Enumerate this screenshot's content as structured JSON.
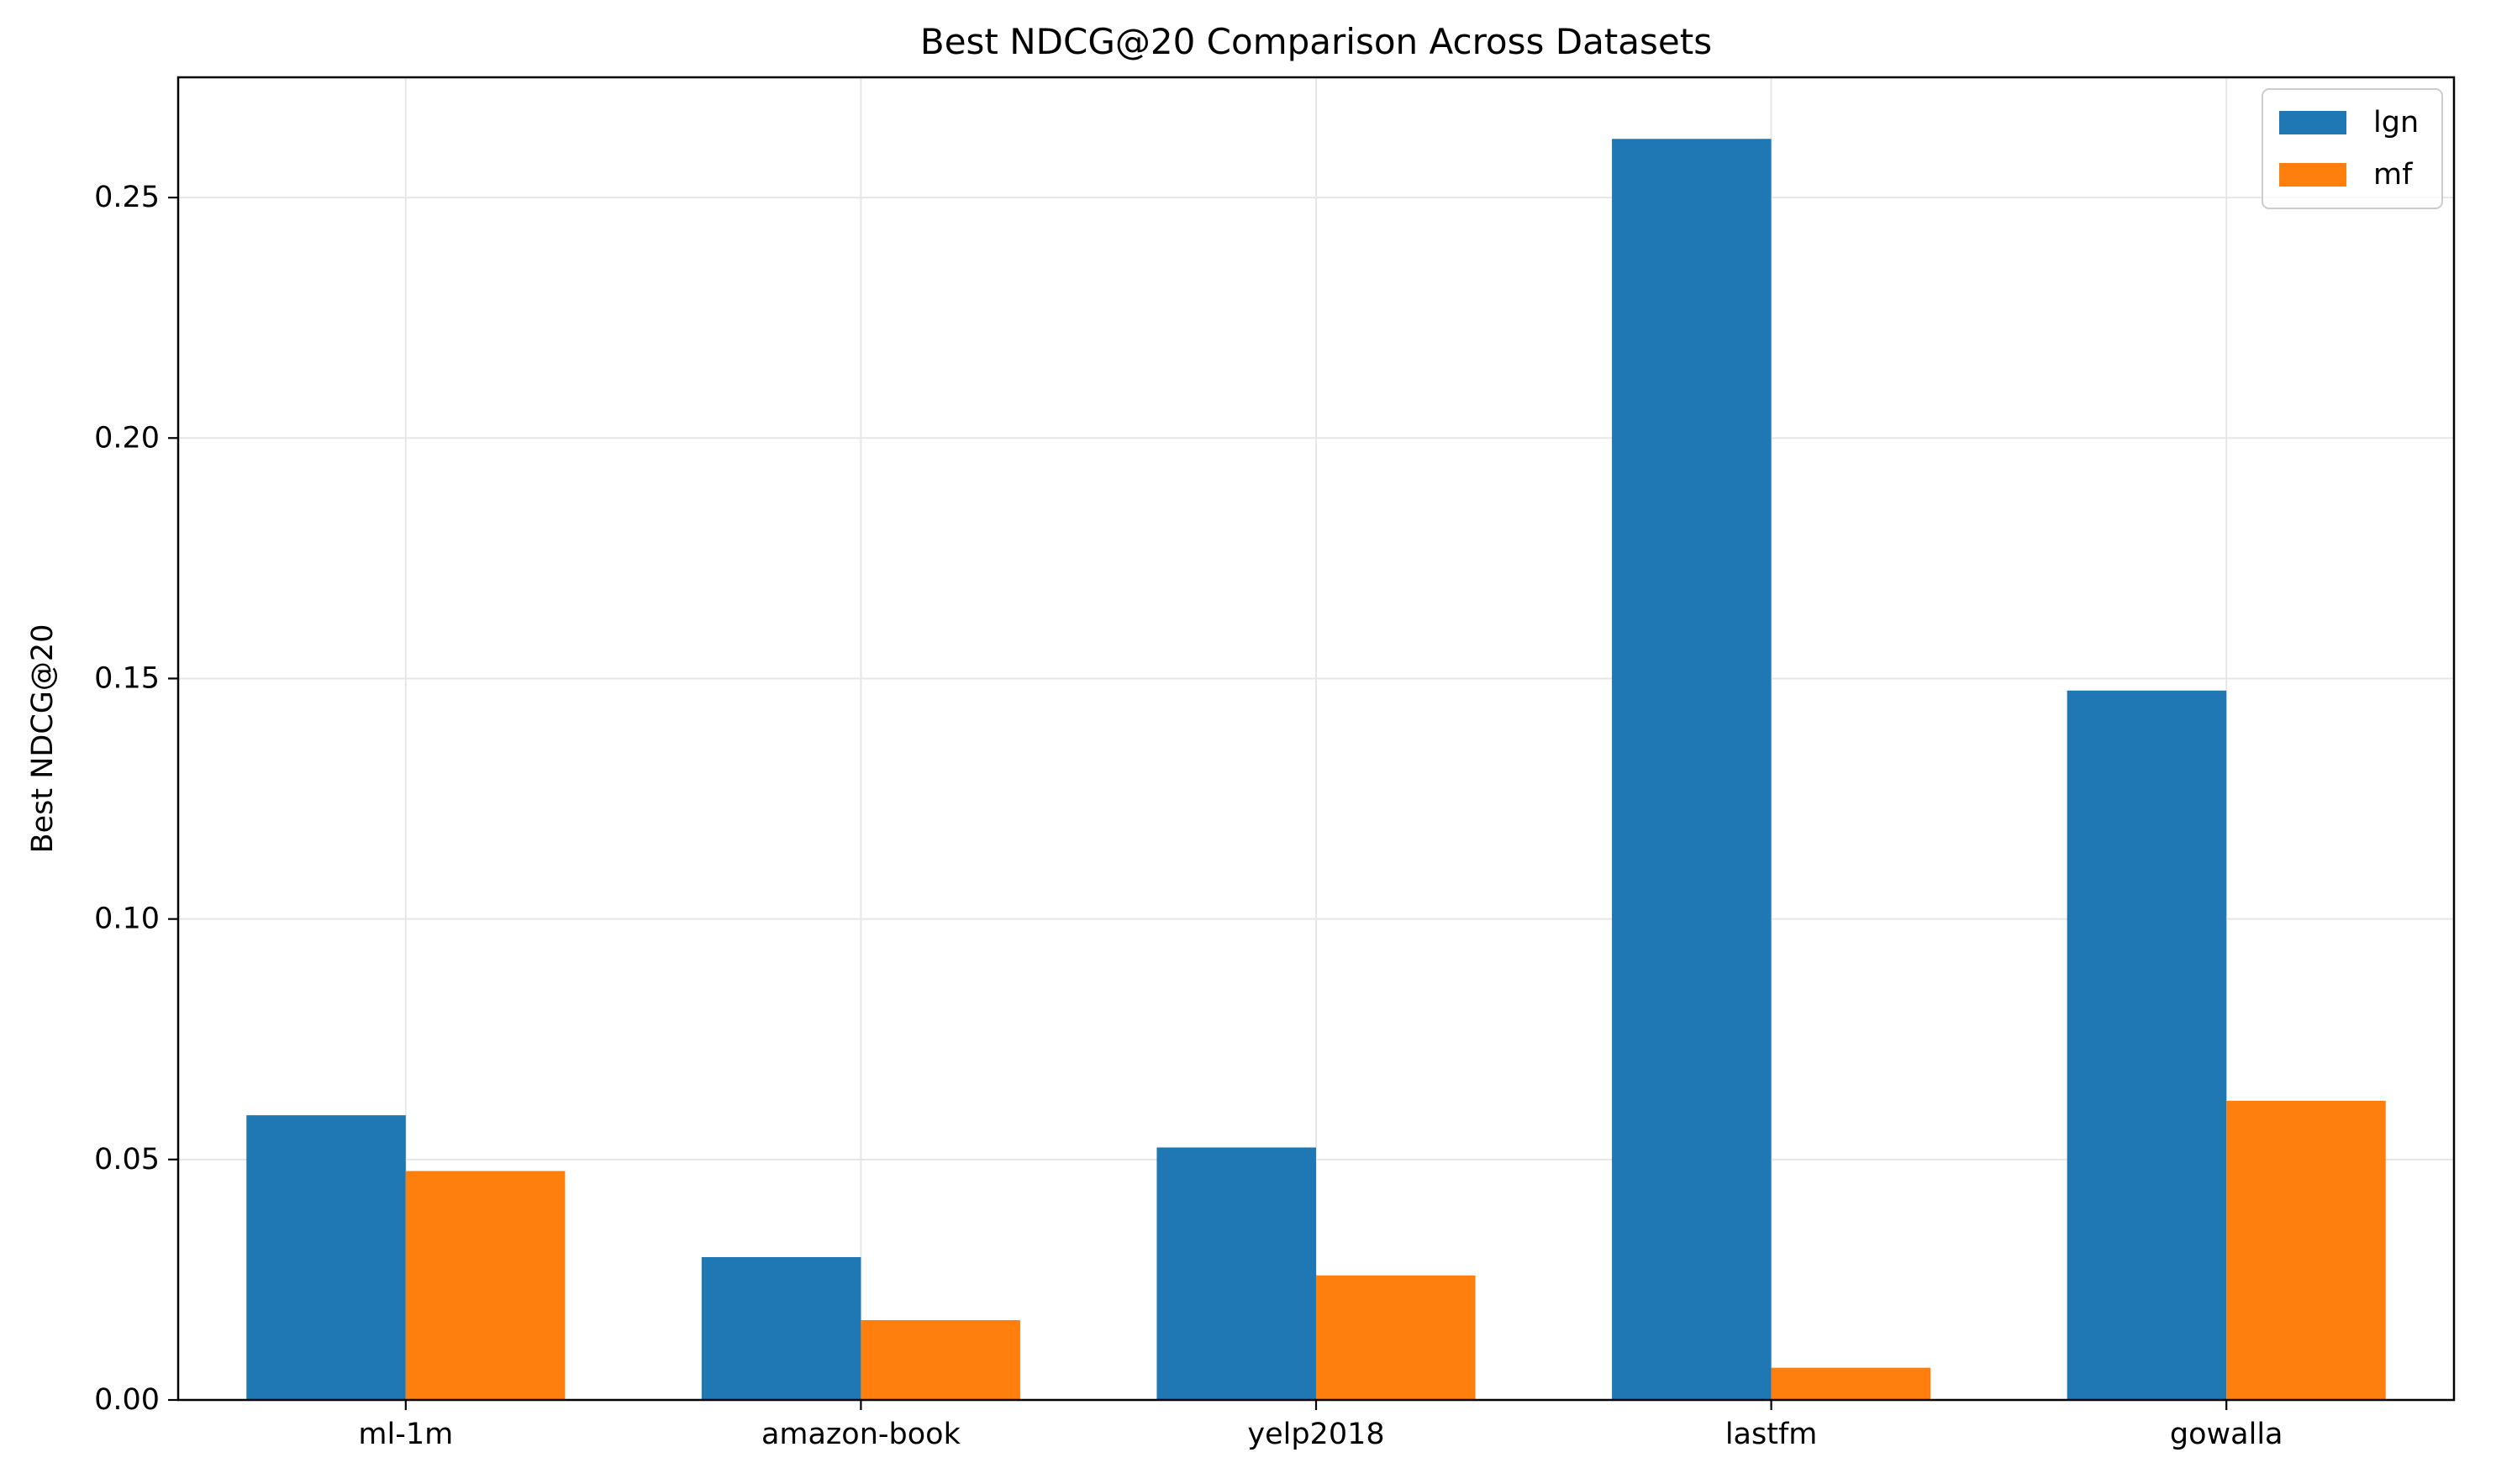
{
  "chart_data": {
    "type": "bar",
    "title": "Best NDCG@20 Comparison Across Datasets",
    "xlabel": "",
    "ylabel": "Best NDCG@20",
    "categories": [
      "ml-1m",
      "amazon-book",
      "yelp2018",
      "lastfm",
      "gowalla"
    ],
    "series": [
      {
        "name": "lgn",
        "color": "#1f77b4",
        "values": [
          0.0592,
          0.0297,
          0.0525,
          0.2622,
          0.1475
        ]
      },
      {
        "name": "mf",
        "color": "#ff7f0e",
        "values": [
          0.0476,
          0.0166,
          0.0259,
          0.0067,
          0.0622
        ]
      }
    ],
    "ylim": [
      0,
      0.275
    ],
    "yticks": [
      0.0,
      0.05,
      0.1,
      0.15,
      0.2,
      0.25
    ],
    "ytick_labels": [
      "0.00",
      "0.05",
      "0.10",
      "0.15",
      "0.20",
      "0.25"
    ],
    "grid": true,
    "legend_position": "top-right"
  }
}
